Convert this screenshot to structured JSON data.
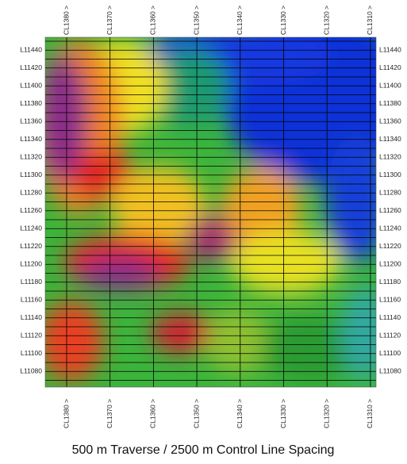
{
  "control_lines_top": [
    "CL1380 >",
    "CL1370 >",
    "CL1360 >",
    "CL1350 >",
    "CL1340 >",
    "CL1330 >",
    "CL1320 >",
    "CL1310 >"
  ],
  "control_lines_bottom": [
    "CL1380 >",
    "CL1370 >",
    "CL1360 >",
    "CL1350 >",
    "CL1340 >",
    "CL1330 >",
    "CL1320 >",
    "CL1310 >"
  ],
  "traverse_lines_left": [
    "L11440",
    "L11420",
    "L11400",
    "L11380",
    "L11360",
    "L11340",
    "L11320",
    "L11300",
    "L11280",
    "L11260",
    "L11240",
    "L11220",
    "L11200",
    "L11180",
    "L11160",
    "L11140",
    "L11120",
    "L11100",
    "L11080"
  ],
  "traverse_lines_right": [
    "L11440",
    "L11420",
    "L11400",
    "L11380",
    "L11360",
    "L11340",
    "L11320",
    "L11300",
    "L11280",
    "L11260",
    "L11240",
    "L11220",
    "L11200",
    "L11180",
    "L11160",
    "L11140",
    "L11120",
    "L11100",
    "L11080"
  ],
  "caption": "500 m Traverse / 2500 m Control Line Spacing"
}
